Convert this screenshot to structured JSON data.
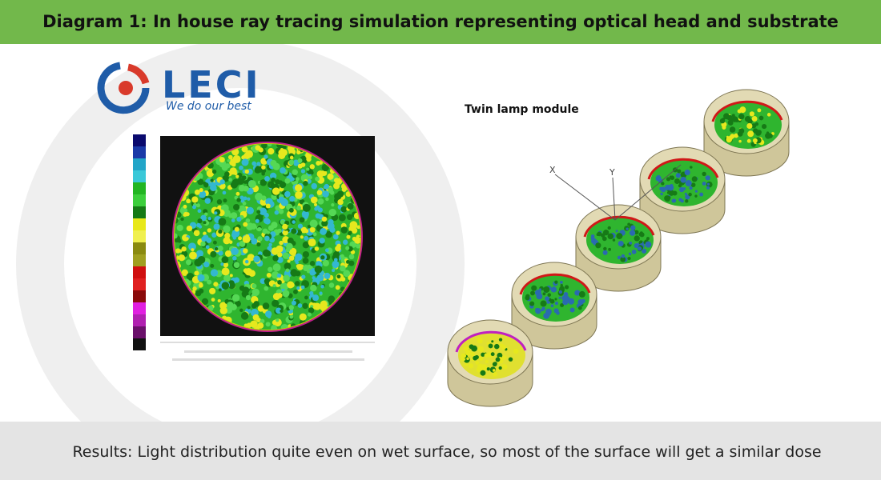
{
  "header": {
    "title": "Diagram 1: In house ray tracing simulation representing optical head and substrate"
  },
  "logo": {
    "name": "LECI",
    "tagline": "We do our best"
  },
  "right_panel": {
    "label": "Twin lamp module",
    "axis_x": "X",
    "axis_y": "Y"
  },
  "footer": {
    "caption": "Results: Light distribution quite even on wet surface, so most of the surface will get a similar dose"
  }
}
